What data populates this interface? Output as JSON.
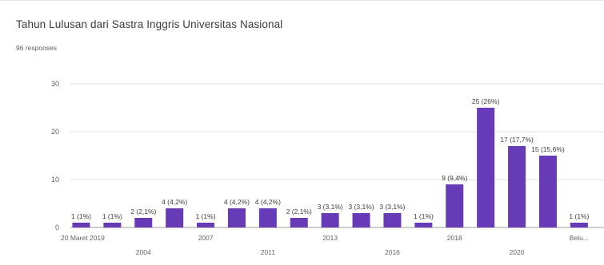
{
  "header": {
    "title": "Tahun Lulusan dari Sastra Inggris Universitas Nasional",
    "responses": "96 responses"
  },
  "chart_data": {
    "type": "bar",
    "ylim": [
      0,
      30
    ],
    "yticks": [
      0,
      10,
      20,
      30
    ],
    "grid": true,
    "color": "#673ab7",
    "categories": [
      "20 Maret 2019",
      "",
      "2004",
      "",
      "2007",
      "",
      "2011",
      "",
      "2013",
      "",
      "2016",
      "",
      "2018",
      "",
      "2020",
      "",
      "Belu..."
    ],
    "values": [
      1,
      1,
      2,
      4,
      1,
      4,
      4,
      2,
      3,
      3,
      3,
      1,
      9,
      25,
      17,
      15,
      1
    ],
    "labels": [
      "1 (1%)",
      "1 (1%)",
      "2 (2,1%)",
      "4 (4,2%)",
      "1 (1%)",
      "4 (4,2%)",
      "4 (4,2%)",
      "2 (2,1%)",
      "3 (3,1%)",
      "3 (3,1%)",
      "3 (3,1%)",
      "1 (1%)",
      "9 (9,4%)",
      "25 (26%)",
      "17 (17,7%)",
      "15 (15,6%)",
      "1 (1%)"
    ]
  }
}
